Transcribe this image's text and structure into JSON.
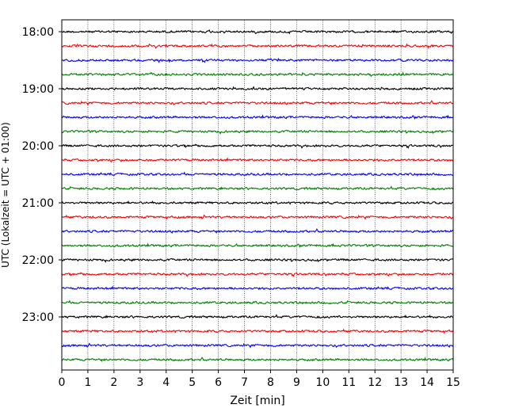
{
  "chart_data": {
    "type": "line",
    "title": "",
    "xlabel": "Zeit  [min]",
    "ylabel": "UTC (Lokalzeit = UTC + 01:00)",
    "xlim": [
      0,
      15
    ],
    "x_ticks": [
      0,
      1,
      2,
      3,
      4,
      5,
      6,
      7,
      8,
      9,
      10,
      11,
      12,
      13,
      14,
      15
    ],
    "x_grid": true,
    "y_tick_labels": [
      "18:00",
      "19:00",
      "20:00",
      "21:00",
      "22:00",
      "23:00"
    ],
    "traces_per_hour": 4,
    "trace_minutes": 15,
    "trace_start_times": [
      "18:00",
      "18:15",
      "18:30",
      "18:45",
      "19:00",
      "19:15",
      "19:30",
      "19:45",
      "20:00",
      "20:15",
      "20:30",
      "20:45",
      "21:00",
      "21:15",
      "21:30",
      "21:45",
      "22:00",
      "22:15",
      "22:30",
      "22:45",
      "23:00",
      "23:15",
      "23:30",
      "23:45"
    ],
    "trace_colors": [
      "#000000",
      "#ff0000",
      "#0000ff",
      "#008000"
    ]
  }
}
